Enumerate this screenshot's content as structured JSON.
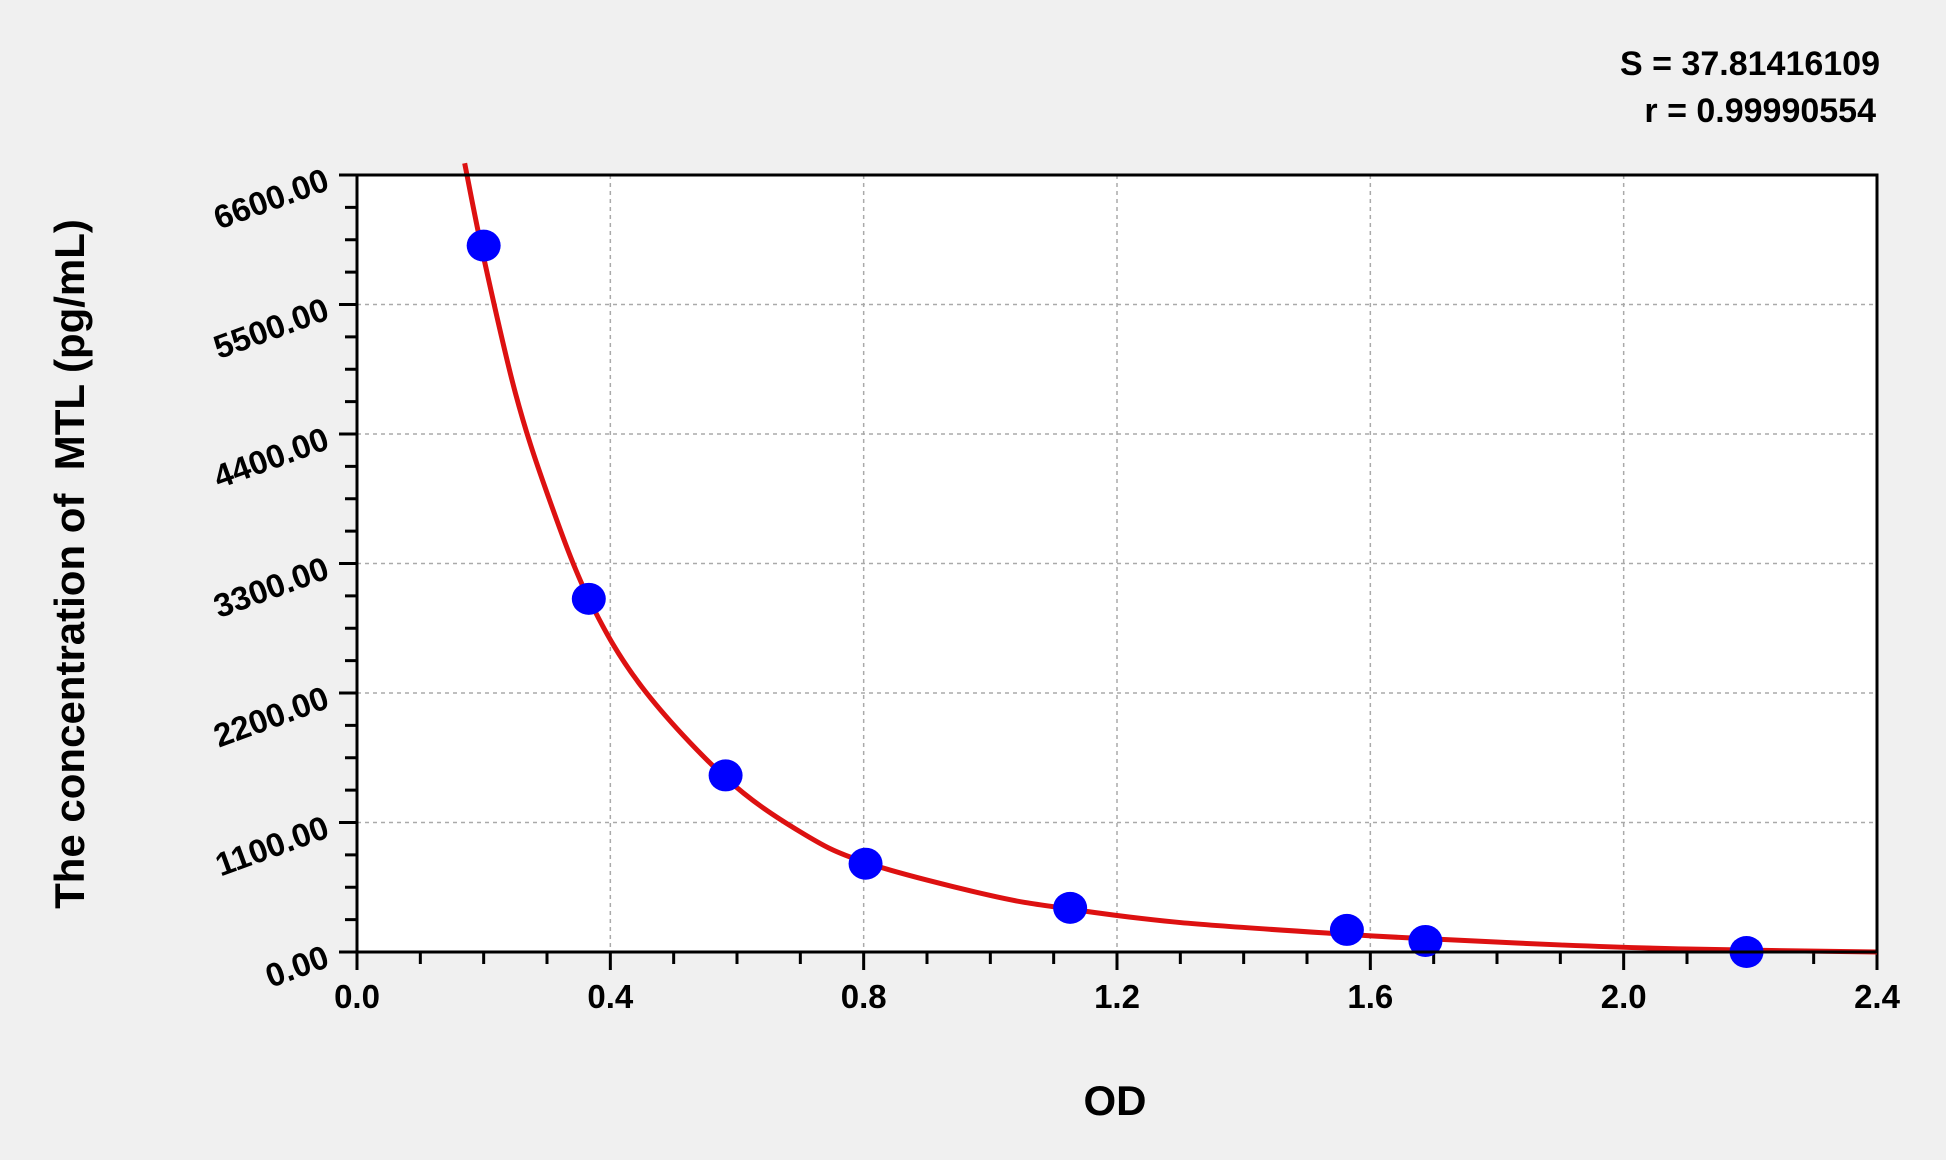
{
  "chart_data": {
    "type": "scatter",
    "xlabel": "OD",
    "ylabel": "The concentration of  MTL (pg/mL)",
    "xlim": [
      0,
      2.4
    ],
    "ylim": [
      0,
      6600
    ],
    "x_ticks": [
      "0.0",
      "0.4",
      "0.8",
      "1.2",
      "1.6",
      "2.0",
      "2.4"
    ],
    "y_ticks": [
      "0.00",
      "1100.00",
      "2200.00",
      "3300.00",
      "4400.00",
      "5500.00",
      "6600.00"
    ],
    "grid": true,
    "annotations": [
      "S = 37.81416109",
      "r = 0.99990554"
    ],
    "points": {
      "x": [
        0.2,
        0.366,
        0.582,
        0.803,
        1.126,
        1.563,
        1.687,
        2.194
      ],
      "y": [
        6000,
        3000,
        1500,
        750,
        375,
        187.5,
        93.75,
        0
      ],
      "color": "#0000ff"
    },
    "fit_curve": {
      "color": "#dd1111",
      "x": [
        0.17,
        0.2,
        0.25,
        0.3,
        0.366,
        0.45,
        0.582,
        0.7,
        0.803,
        1.0,
        1.126,
        1.3,
        1.563,
        1.7,
        1.9,
        2.1,
        2.4
      ],
      "y": [
        6700,
        5900,
        4750,
        3900,
        3000,
        2250,
        1480,
        1020,
        760,
        480,
        365,
        250,
        150,
        110,
        60,
        25,
        0
      ]
    }
  }
}
